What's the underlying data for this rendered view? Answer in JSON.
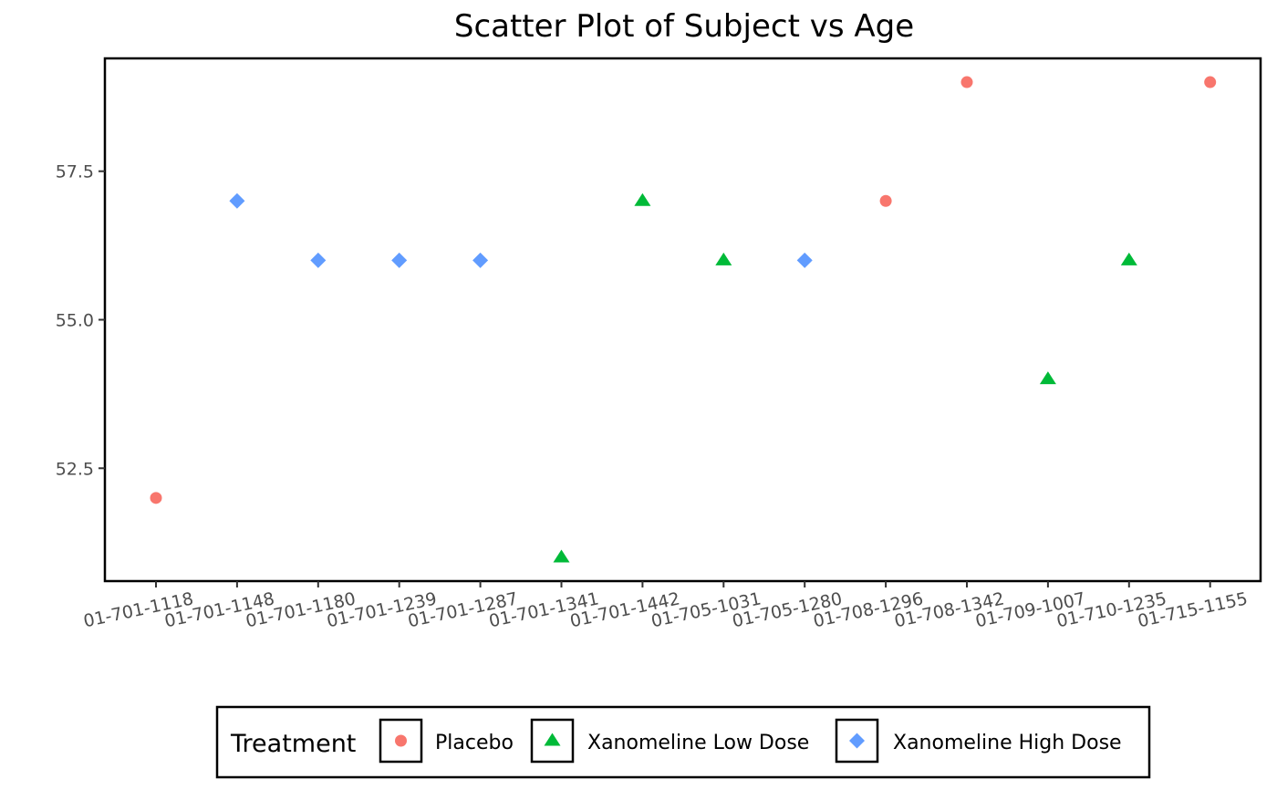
{
  "chart_data": {
    "type": "scatter",
    "title": "Scatter Plot of Subject vs Age",
    "xlabel": "",
    "ylabel": "",
    "x_categories": [
      "01-701-1118",
      "01-701-1148",
      "01-701-1180",
      "01-701-1239",
      "01-701-1287",
      "01-701-1341",
      "01-701-1442",
      "01-705-1031",
      "01-705-1280",
      "01-708-1296",
      "01-708-1342",
      "01-709-1007",
      "01-710-1235",
      "01-715-1155"
    ],
    "ylim": [
      50.6,
      59.4
    ],
    "y_ticks": [
      52.5,
      55.0,
      57.5
    ],
    "y_tick_labels": [
      "52.5",
      "55.0",
      "57.5"
    ],
    "grid": false,
    "legend_placement": "bottom",
    "legend_title": "Treatment",
    "series": [
      {
        "name": "Placebo",
        "shape": "circle",
        "color": "#F8766D",
        "points": [
          {
            "x": "01-701-1118",
            "y": 52
          },
          {
            "x": "01-708-1296",
            "y": 57
          },
          {
            "x": "01-708-1342",
            "y": 59
          },
          {
            "x": "01-715-1155",
            "y": 59
          }
        ]
      },
      {
        "name": "Xanomeline Low Dose",
        "shape": "triangle",
        "color": "#00BA38",
        "points": [
          {
            "x": "01-701-1341",
            "y": 51
          },
          {
            "x": "01-701-1442",
            "y": 57
          },
          {
            "x": "01-705-1031",
            "y": 56
          },
          {
            "x": "01-709-1007",
            "y": 54
          },
          {
            "x": "01-710-1235",
            "y": 56
          }
        ]
      },
      {
        "name": "Xanomeline High Dose",
        "shape": "diamond",
        "color": "#619CFF",
        "points": [
          {
            "x": "01-701-1148",
            "y": 57
          },
          {
            "x": "01-701-1180",
            "y": 56
          },
          {
            "x": "01-701-1239",
            "y": 56
          },
          {
            "x": "01-701-1287",
            "y": 56
          },
          {
            "x": "01-705-1280",
            "y": 56
          }
        ]
      }
    ]
  }
}
